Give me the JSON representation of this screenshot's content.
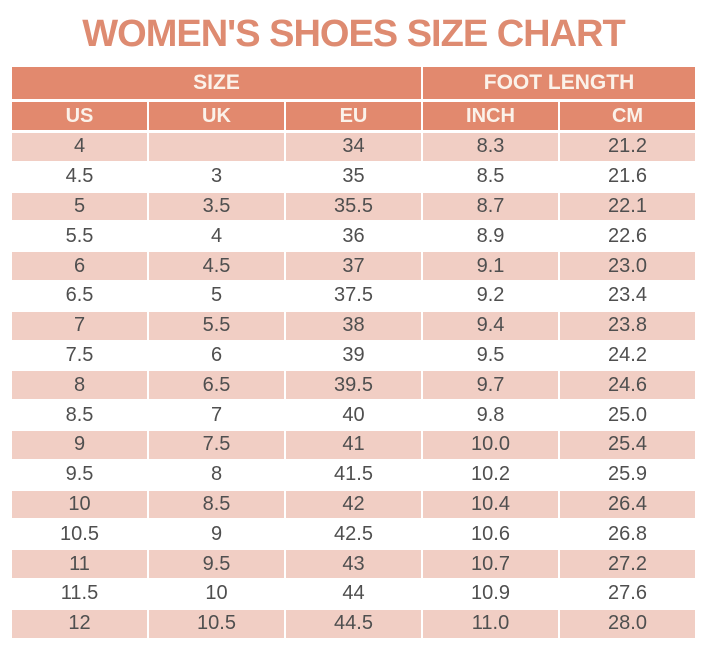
{
  "title": "WOMEN'S SHOES SIZE CHART",
  "table": {
    "groups": [
      {
        "label": "SIZE",
        "span": 3
      },
      {
        "label": "FOOT LENGTH",
        "span": 2
      }
    ],
    "columns": [
      "US",
      "UK",
      "EU",
      "INCH",
      "CM"
    ],
    "rows": [
      [
        "4",
        "",
        "34",
        "8.3",
        "21.2"
      ],
      [
        "4.5",
        "3",
        "35",
        "8.5",
        "21.6"
      ],
      [
        "5",
        "3.5",
        "35.5",
        "8.7",
        "22.1"
      ],
      [
        "5.5",
        "4",
        "36",
        "8.9",
        "22.6"
      ],
      [
        "6",
        "4.5",
        "37",
        "9.1",
        "23.0"
      ],
      [
        "6.5",
        "5",
        "37.5",
        "9.2",
        "23.4"
      ],
      [
        "7",
        "5.5",
        "38",
        "9.4",
        "23.8"
      ],
      [
        "7.5",
        "6",
        "39",
        "9.5",
        "24.2"
      ],
      [
        "8",
        "6.5",
        "39.5",
        "9.7",
        "24.6"
      ],
      [
        "8.5",
        "7",
        "40",
        "9.8",
        "25.0"
      ],
      [
        "9",
        "7.5",
        "41",
        "10.0",
        "25.4"
      ],
      [
        "9.5",
        "8",
        "41.5",
        "10.2",
        "25.9"
      ],
      [
        "10",
        "8.5",
        "42",
        "10.4",
        "26.4"
      ],
      [
        "10.5",
        "9",
        "42.5",
        "10.6",
        "26.8"
      ],
      [
        "11",
        "9.5",
        "43",
        "10.7",
        "27.2"
      ],
      [
        "11.5",
        "10",
        "44",
        "10.9",
        "27.6"
      ],
      [
        "12",
        "10.5",
        "44.5",
        "11.0",
        "28.0"
      ]
    ]
  },
  "colors": {
    "accent": "#e2896e",
    "header_bg": "#e2896e",
    "header_text": "#fbf2ea",
    "row_pink": "#f1cec4",
    "row_white": "#ffffff",
    "title_text": "#de8b71",
    "cell_text": "#4f4f4f"
  },
  "chart_data": {
    "type": "table",
    "title": "WOMEN'S SHOES SIZE CHART",
    "column_groups": [
      "SIZE",
      "SIZE",
      "SIZE",
      "FOOT LENGTH",
      "FOOT LENGTH"
    ],
    "columns": [
      "US",
      "UK",
      "EU",
      "INCH",
      "CM"
    ],
    "rows": [
      [
        "4",
        "",
        "34",
        "8.3",
        "21.2"
      ],
      [
        "4.5",
        "3",
        "35",
        "8.5",
        "21.6"
      ],
      [
        "5",
        "3.5",
        "35.5",
        "8.7",
        "22.1"
      ],
      [
        "5.5",
        "4",
        "36",
        "8.9",
        "22.6"
      ],
      [
        "6",
        "4.5",
        "37",
        "9.1",
        "23.0"
      ],
      [
        "6.5",
        "5",
        "37.5",
        "9.2",
        "23.4"
      ],
      [
        "7",
        "5.5",
        "38",
        "9.4",
        "23.8"
      ],
      [
        "7.5",
        "6",
        "39",
        "9.5",
        "24.2"
      ],
      [
        "8",
        "6.5",
        "39.5",
        "9.7",
        "24.6"
      ],
      [
        "8.5",
        "7",
        "40",
        "9.8",
        "25.0"
      ],
      [
        "9",
        "7.5",
        "41",
        "10.0",
        "25.4"
      ],
      [
        "9.5",
        "8",
        "41.5",
        "10.2",
        "25.9"
      ],
      [
        "10",
        "8.5",
        "42",
        "10.4",
        "26.4"
      ],
      [
        "10.5",
        "9",
        "42.5",
        "10.6",
        "26.8"
      ],
      [
        "11",
        "9.5",
        "43",
        "10.7",
        "27.2"
      ],
      [
        "11.5",
        "10",
        "44",
        "10.9",
        "27.6"
      ],
      [
        "12",
        "10.5",
        "44.5",
        "11.0",
        "28.0"
      ]
    ]
  }
}
